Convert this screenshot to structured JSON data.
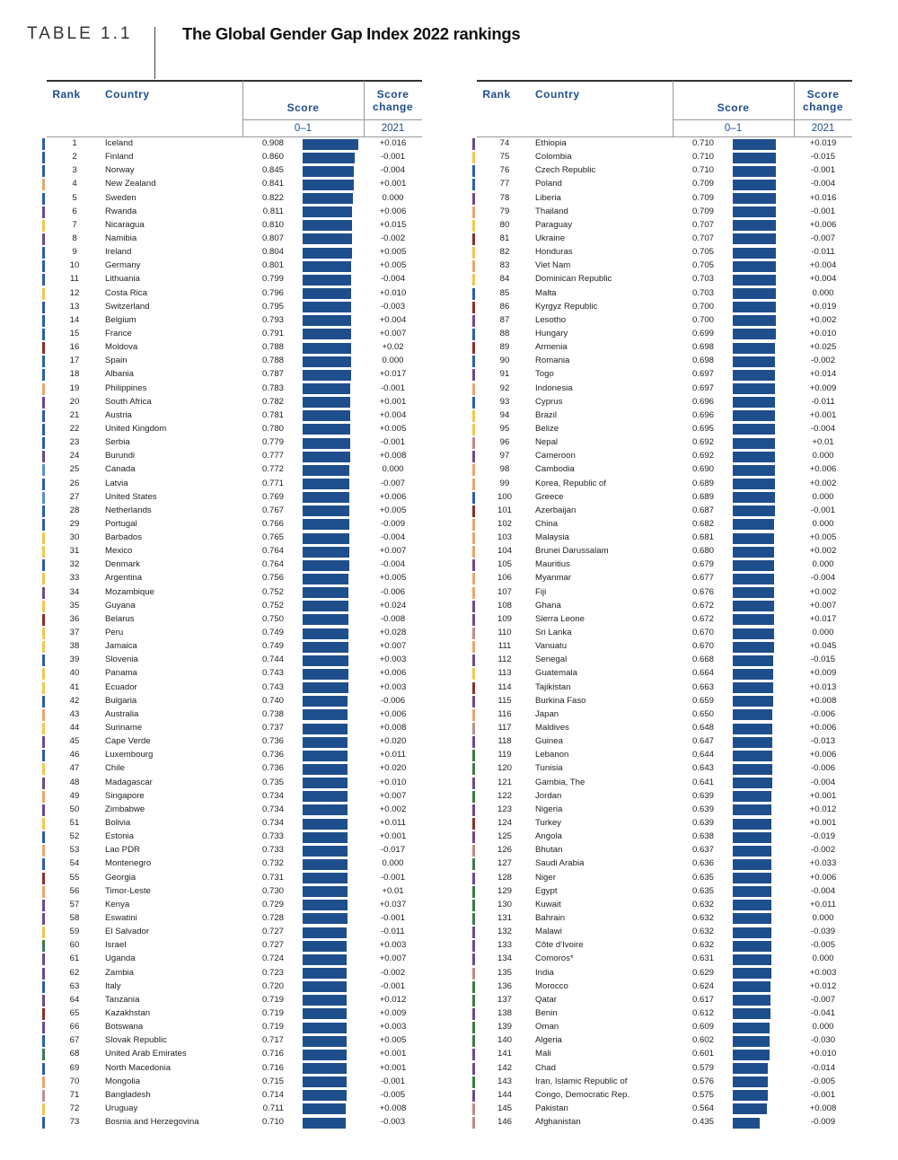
{
  "header": {
    "label": "TABLE 1.1",
    "title": "The Global Gender Gap Index 2022 rankings"
  },
  "bar_color": "#1f4e8c",
  "tables": [
    {
      "columns": {
        "rank": "Rank",
        "country": "Country",
        "score": "Score",
        "change": "Score change",
        "scale": {
          "label": "0–1",
          "min": 0,
          "max": 1
        },
        "year": "2021"
      },
      "rows": [
        [
          1,
          "Iceland",
          "0.908",
          "+0.016",
          "#2b5ea7"
        ],
        [
          2,
          "Finland",
          "0.860",
          "-0.001",
          "#2b5ea7"
        ],
        [
          3,
          "Norway",
          "0.845",
          "-0.004",
          "#2b5ea7"
        ],
        [
          4,
          "New Zealand",
          "0.841",
          "+0.001",
          "#eaa56a"
        ],
        [
          5,
          "Sweden",
          "0.822",
          "0.000",
          "#2b5ea7"
        ],
        [
          6,
          "Rwanda",
          "0.811",
          "+0.006",
          "#6b4a8f"
        ],
        [
          7,
          "Nicaragua",
          "0.810",
          "+0.015",
          "#f3c74f"
        ],
        [
          8,
          "Namibia",
          "0.807",
          "-0.002",
          "#6b4a8f"
        ],
        [
          9,
          "Ireland",
          "0.804",
          "+0.005",
          "#2b5ea7"
        ],
        [
          10,
          "Germany",
          "0.801",
          "+0.005",
          "#2b5ea7"
        ],
        [
          11,
          "Lithuania",
          "0.799",
          "-0.004",
          "#2b5ea7"
        ],
        [
          12,
          "Costa Rica",
          "0.796",
          "+0.010",
          "#f3c74f"
        ],
        [
          13,
          "Switzerland",
          "0.795",
          "-0.003",
          "#2b5ea7"
        ],
        [
          14,
          "Belgium",
          "0.793",
          "+0.004",
          "#2b5ea7"
        ],
        [
          15,
          "France",
          "0.791",
          "+0.007",
          "#2b5ea7"
        ],
        [
          16,
          "Moldova",
          "0.788",
          "+0.02",
          "#8b2e2e"
        ],
        [
          17,
          "Spain",
          "0.788",
          "0.000",
          "#2b5ea7"
        ],
        [
          18,
          "Albania",
          "0.787",
          "+0.017",
          "#2b5ea7"
        ],
        [
          19,
          "Philippines",
          "0.783",
          "-0.001",
          "#eaa56a"
        ],
        [
          20,
          "South Africa",
          "0.782",
          "+0.001",
          "#6b4a8f"
        ],
        [
          21,
          "Austria",
          "0.781",
          "+0.004",
          "#2b5ea7"
        ],
        [
          22,
          "United Kingdom",
          "0.780",
          "+0.005",
          "#2b5ea7"
        ],
        [
          23,
          "Serbia",
          "0.779",
          "-0.001",
          "#2b5ea7"
        ],
        [
          24,
          "Burundi",
          "0.777",
          "+0.008",
          "#6b4a8f"
        ],
        [
          25,
          "Canada",
          "0.772",
          "0.000",
          "#5b8fd0"
        ],
        [
          26,
          "Latvia",
          "0.771",
          "-0.007",
          "#2b5ea7"
        ],
        [
          27,
          "United States",
          "0.769",
          "+0.006",
          "#5b8fd0"
        ],
        [
          28,
          "Netherlands",
          "0.767",
          "+0.005",
          "#2b5ea7"
        ],
        [
          29,
          "Portugal",
          "0.766",
          "-0.009",
          "#2b5ea7"
        ],
        [
          30,
          "Barbados",
          "0.765",
          "-0.004",
          "#f3c74f"
        ],
        [
          31,
          "Mexico",
          "0.764",
          "+0.007",
          "#f3c74f"
        ],
        [
          32,
          "Denmark",
          "0.764",
          "-0.004",
          "#2b5ea7"
        ],
        [
          33,
          "Argentina",
          "0.756",
          "+0.005",
          "#f3c74f"
        ],
        [
          34,
          "Mozambique",
          "0.752",
          "-0.006",
          "#6b4a8f"
        ],
        [
          35,
          "Guyana",
          "0.752",
          "+0.024",
          "#f3c74f"
        ],
        [
          36,
          "Belarus",
          "0.750",
          "-0.008",
          "#8b2e2e"
        ],
        [
          37,
          "Peru",
          "0.749",
          "+0.028",
          "#f3c74f"
        ],
        [
          38,
          "Jamaica",
          "0.749",
          "+0.007",
          "#f3c74f"
        ],
        [
          39,
          "Slovenia",
          "0.744",
          "+0.003",
          "#2b5ea7"
        ],
        [
          40,
          "Panama",
          "0.743",
          "+0.006",
          "#f3c74f"
        ],
        [
          41,
          "Ecuador",
          "0.743",
          "+0.003",
          "#f3c74f"
        ],
        [
          42,
          "Bulgaria",
          "0.740",
          "-0.006",
          "#2b5ea7"
        ],
        [
          43,
          "Australia",
          "0.738",
          "+0.006",
          "#eaa56a"
        ],
        [
          44,
          "Suriname",
          "0.737",
          "+0.008",
          "#f3c74f"
        ],
        [
          45,
          "Cape Verde",
          "0.736",
          "+0.020",
          "#6b4a8f"
        ],
        [
          46,
          "Luxembourg",
          "0.736",
          "+0.011",
          "#2b5ea7"
        ],
        [
          47,
          "Chile",
          "0.736",
          "+0.020",
          "#f3c74f"
        ],
        [
          48,
          "Madagascar",
          "0.735",
          "+0.010",
          "#6b4a8f"
        ],
        [
          49,
          "Singapore",
          "0.734",
          "+0.007",
          "#eaa56a"
        ],
        [
          50,
          "Zimbabwe",
          "0.734",
          "+0.002",
          "#6b4a8f"
        ],
        [
          51,
          "Bolivia",
          "0.734",
          "+0.011",
          "#f3c74f"
        ],
        [
          52,
          "Estonia",
          "0.733",
          "+0.001",
          "#2b5ea7"
        ],
        [
          53,
          "Lao PDR",
          "0.733",
          "-0.017",
          "#eaa56a"
        ],
        [
          54,
          "Montenegro",
          "0.732",
          "0.000",
          "#2b5ea7"
        ],
        [
          55,
          "Georgia",
          "0.731",
          "-0.001",
          "#8b2e2e"
        ],
        [
          56,
          "Timor-Leste",
          "0.730",
          "+0.01",
          "#eaa56a"
        ],
        [
          57,
          "Kenya",
          "0.729",
          "+0.037",
          "#6b4a8f"
        ],
        [
          58,
          "Eswatini",
          "0.728",
          "-0.001",
          "#6b4a8f"
        ],
        [
          59,
          "El Salvador",
          "0.727",
          "-0.011",
          "#f3c74f"
        ],
        [
          60,
          "Israel",
          "0.727",
          "+0.003",
          "#3d7a4a"
        ],
        [
          61,
          "Uganda",
          "0.724",
          "+0.007",
          "#6b4a8f"
        ],
        [
          62,
          "Zambia",
          "0.723",
          "-0.002",
          "#6b4a8f"
        ],
        [
          63,
          "Italy",
          "0.720",
          "-0.001",
          "#2b5ea7"
        ],
        [
          64,
          "Tanzania",
          "0.719",
          "+0.012",
          "#6b4a8f"
        ],
        [
          65,
          "Kazakhstan",
          "0.719",
          "+0.009",
          "#8b2e2e"
        ],
        [
          66,
          "Botswana",
          "0.719",
          "+0.003",
          "#6b4a8f"
        ],
        [
          67,
          "Slovak Republic",
          "0.717",
          "+0.005",
          "#2b5ea7"
        ],
        [
          68,
          "United Arab Emirates",
          "0.716",
          "+0.001",
          "#3d7a4a"
        ],
        [
          69,
          "North Macedonia",
          "0.716",
          "+0.001",
          "#2b5ea7"
        ],
        [
          70,
          "Mongolia",
          "0.715",
          "-0.001",
          "#eaa56a"
        ],
        [
          71,
          "Bangladesh",
          "0.714",
          "-0.005",
          "#c08c8a"
        ],
        [
          72,
          "Uruguay",
          "0.711",
          "+0.008",
          "#f3c74f"
        ],
        [
          73,
          "Bosnia and Herzegovina",
          "0.710",
          "-0.003",
          "#2b5ea7"
        ]
      ]
    },
    {
      "columns": {
        "rank": "Rank",
        "country": "Country",
        "score": "Score",
        "change": "Score change",
        "scale": {
          "label": "0–1",
          "min": 0,
          "max": 1
        },
        "year": "2021"
      },
      "rows": [
        [
          74,
          "Ethiopia",
          "0.710",
          "+0.019",
          "#6b4a8f"
        ],
        [
          75,
          "Colombia",
          "0.710",
          "-0.015",
          "#f3c74f"
        ],
        [
          76,
          "Czech Republic",
          "0.710",
          "-0.001",
          "#2b5ea7"
        ],
        [
          77,
          "Poland",
          "0.709",
          "-0.004",
          "#2b5ea7"
        ],
        [
          78,
          "Liberia",
          "0.709",
          "+0.016",
          "#6b4a8f"
        ],
        [
          79,
          "Thailand",
          "0.709",
          "-0.001",
          "#eaa56a"
        ],
        [
          80,
          "Paraguay",
          "0.707",
          "+0.006",
          "#f3c74f"
        ],
        [
          81,
          "Ukraine",
          "0.707",
          "-0.007",
          "#8b2e2e"
        ],
        [
          82,
          "Honduras",
          "0.705",
          "-0.011",
          "#f3c74f"
        ],
        [
          83,
          "Viet Nam",
          "0.705",
          "+0.004",
          "#eaa56a"
        ],
        [
          84,
          "Dominican Republic",
          "0.703",
          "+0.004",
          "#f3c74f"
        ],
        [
          85,
          "Malta",
          "0.703",
          "0.000",
          "#2b5ea7"
        ],
        [
          86,
          "Kyrgyz Republic",
          "0.700",
          "+0.019",
          "#8b2e2e"
        ],
        [
          87,
          "Lesotho",
          "0.700",
          "+0.002",
          "#6b4a8f"
        ],
        [
          88,
          "Hungary",
          "0.699",
          "+0.010",
          "#2b5ea7"
        ],
        [
          89,
          "Armenia",
          "0.698",
          "+0.025",
          "#8b2e2e"
        ],
        [
          90,
          "Romania",
          "0.698",
          "-0.002",
          "#2b5ea7"
        ],
        [
          91,
          "Togo",
          "0.697",
          "+0.014",
          "#6b4a8f"
        ],
        [
          92,
          "Indonesia",
          "0.697",
          "+0.009",
          "#eaa56a"
        ],
        [
          93,
          "Cyprus",
          "0.696",
          "-0.011",
          "#2b5ea7"
        ],
        [
          94,
          "Brazil",
          "0.696",
          "+0.001",
          "#f3c74f"
        ],
        [
          95,
          "Belize",
          "0.695",
          "-0.004",
          "#f3c74f"
        ],
        [
          96,
          "Nepal",
          "0.692",
          "+0.01",
          "#c08c8a"
        ],
        [
          97,
          "Cameroon",
          "0.692",
          "0.000",
          "#6b4a8f"
        ],
        [
          98,
          "Cambodia",
          "0.690",
          "+0.006",
          "#eaa56a"
        ],
        [
          99,
          "Korea, Republic of",
          "0.689",
          "+0.002",
          "#eaa56a"
        ],
        [
          100,
          "Greece",
          "0.689",
          "0.000",
          "#2b5ea7"
        ],
        [
          101,
          "Azerbaijan",
          "0.687",
          "-0.001",
          "#8b2e2e"
        ],
        [
          102,
          "China",
          "0.682",
          "0.000",
          "#eaa56a"
        ],
        [
          103,
          "Malaysia",
          "0.681",
          "+0.005",
          "#eaa56a"
        ],
        [
          104,
          "Brunei Darussalam",
          "0.680",
          "+0.002",
          "#eaa56a"
        ],
        [
          105,
          "Mauritius",
          "0.679",
          "0.000",
          "#6b4a8f"
        ],
        [
          106,
          "Myanmar",
          "0.677",
          "-0.004",
          "#eaa56a"
        ],
        [
          107,
          "Fiji",
          "0.676",
          "+0.002",
          "#eaa56a"
        ],
        [
          108,
          "Ghana",
          "0.672",
          "+0.007",
          "#6b4a8f"
        ],
        [
          109,
          "Sierra Leone",
          "0.672",
          "+0.017",
          "#6b4a8f"
        ],
        [
          110,
          "Sri Lanka",
          "0.670",
          "0.000",
          "#c08c8a"
        ],
        [
          111,
          "Vanuatu",
          "0.670",
          "+0.045",
          "#eaa56a"
        ],
        [
          112,
          "Senegal",
          "0.668",
          "-0.015",
          "#6b4a8f"
        ],
        [
          113,
          "Guatemala",
          "0.664",
          "+0.009",
          "#f3c74f"
        ],
        [
          114,
          "Tajikistan",
          "0.663",
          "+0.013",
          "#8b2e2e"
        ],
        [
          115,
          "Burkina Faso",
          "0.659",
          "+0.008",
          "#6b4a8f"
        ],
        [
          116,
          "Japan",
          "0.650",
          "-0.006",
          "#eaa56a"
        ],
        [
          117,
          "Maldives",
          "0.648",
          "+0.006",
          "#c08c8a"
        ],
        [
          118,
          "Guinea",
          "0.647",
          "-0.013",
          "#6b4a8f"
        ],
        [
          119,
          "Lebanon",
          "0.644",
          "+0.006",
          "#3d7a4a"
        ],
        [
          120,
          "Tunisia",
          "0.643",
          "-0.006",
          "#3d7a4a"
        ],
        [
          121,
          "Gambia, The",
          "0.641",
          "-0.004",
          "#6b4a8f"
        ],
        [
          122,
          "Jordan",
          "0.639",
          "+0.001",
          "#3d7a4a"
        ],
        [
          123,
          "Nigeria",
          "0.639",
          "+0.012",
          "#6b4a8f"
        ],
        [
          124,
          "Turkey",
          "0.639",
          "+0.001",
          "#8b2e2e"
        ],
        [
          125,
          "Angola",
          "0.638",
          "-0.019",
          "#6b4a8f"
        ],
        [
          126,
          "Bhutan",
          "0.637",
          "-0.002",
          "#c08c8a"
        ],
        [
          127,
          "Saudi Arabia",
          "0.636",
          "+0.033",
          "#3d7a4a"
        ],
        [
          128,
          "Niger",
          "0.635",
          "+0.006",
          "#6b4a8f"
        ],
        [
          129,
          "Egypt",
          "0.635",
          "-0.004",
          "#3d7a4a"
        ],
        [
          130,
          "Kuwait",
          "0.632",
          "+0.011",
          "#3d7a4a"
        ],
        [
          131,
          "Bahrain",
          "0.632",
          "0.000",
          "#3d7a4a"
        ],
        [
          132,
          "Malawi",
          "0.632",
          "-0.039",
          "#6b4a8f"
        ],
        [
          133,
          "Côte d'Ivoire",
          "0.632",
          "-0.005",
          "#6b4a8f"
        ],
        [
          134,
          "Comoros*",
          "0.631",
          "0.000",
          "#6b4a8f"
        ],
        [
          135,
          "India",
          "0.629",
          "+0.003",
          "#c08c8a"
        ],
        [
          136,
          "Morocco",
          "0.624",
          "+0.012",
          "#3d7a4a"
        ],
        [
          137,
          "Qatar",
          "0.617",
          "-0.007",
          "#3d7a4a"
        ],
        [
          138,
          "Benin",
          "0.612",
          "-0.041",
          "#6b4a8f"
        ],
        [
          139,
          "Oman",
          "0.609",
          "0.000",
          "#3d7a4a"
        ],
        [
          140,
          "Algeria",
          "0.602",
          "-0.030",
          "#3d7a4a"
        ],
        [
          141,
          "Mali",
          "0.601",
          "+0.010",
          "#6b4a8f"
        ],
        [
          142,
          "Chad",
          "0.579",
          "-0.014",
          "#6b4a8f"
        ],
        [
          143,
          "Iran, Islamic Republic of",
          "0.576",
          "-0.005",
          "#3d7a4a"
        ],
        [
          144,
          "Congo, Democratic Rep.",
          "0.575",
          "-0.001",
          "#6b4a8f"
        ],
        [
          145,
          "Pakistan",
          "0.564",
          "+0.008",
          "#c08c8a"
        ],
        [
          146,
          "Afghanistan",
          "0.435",
          "-0.009",
          "#c08c8a"
        ]
      ]
    }
  ]
}
